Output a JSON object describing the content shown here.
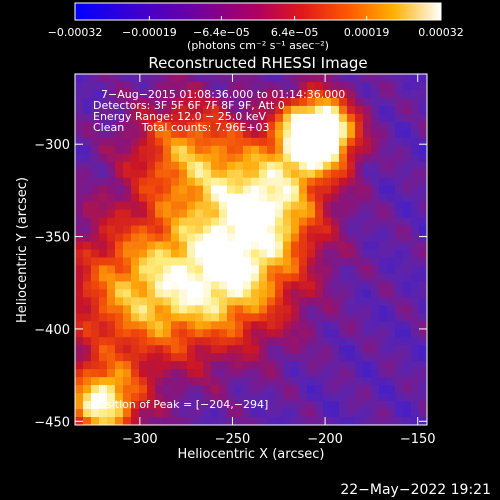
{
  "chart_data": {
    "type": "heatmap",
    "title": "Reconstructed RHESSI Image",
    "xlabel": "Heliocentric X (arcsec)",
    "ylabel": "Heliocentric Y (arcsec)",
    "xlim": [
      -335,
      -145
    ],
    "ylim": [
      -452,
      -262
    ],
    "x_ticks": [
      -300,
      -250,
      -200,
      -150
    ],
    "x_tick_labels": [
      "−300",
      "−250",
      "−200",
      "−150"
    ],
    "y_ticks": [
      -300,
      -350,
      -400,
      -450
    ],
    "y_tick_labels": [
      "−300",
      "−350",
      "−400",
      "−450"
    ],
    "colorbar": {
      "range": [
        -0.00032,
        0.00032
      ],
      "ticks": [
        -0.00032,
        -0.00019,
        -6.4e-05,
        6.4e-05,
        0.00019,
        0.00032
      ],
      "tick_labels": [
        "−0.00032",
        "−0.00019",
        "−6.4e−05",
        "6.4e−05",
        "0.00019",
        "0.00032"
      ],
      "units": "(photons cm⁻² s⁻¹ asec⁻²)"
    },
    "peak": [
      -204,
      -294
    ],
    "features": [
      {
        "x": -204,
        "y": -294,
        "sigma": 14,
        "amp": 1.0
      },
      {
        "x": -250,
        "y": -370,
        "sigma": 26,
        "amp": 0.55
      },
      {
        "x": -300,
        "y": -380,
        "sigma": 30,
        "amp": 0.5
      },
      {
        "x": -320,
        "y": -440,
        "sigma": 14,
        "amp": 0.65
      },
      {
        "x": -275,
        "y": -305,
        "sigma": 22,
        "amp": 0.45
      },
      {
        "x": -230,
        "y": -330,
        "sigma": 22,
        "amp": 0.55
      }
    ],
    "grid": false
  },
  "annotations": {
    "time_range": "7−Aug−2015 01:08:36.000 to 01:14:36.000",
    "detectors": "Detectors: 3F 5F 6F 7F 8F 9F, Att 0",
    "energy_range": "Energy Range: 12.0 − 25.0 keV",
    "algorithm_counts": "Clean     Total counts: 7.96E+03",
    "peak_position": "Position of Peak = [−204,−294]"
  },
  "footer": {
    "timestamp": "22−May−2022 19:21"
  },
  "colors": {
    "background": "#000000",
    "foreground": "#ffffff"
  }
}
